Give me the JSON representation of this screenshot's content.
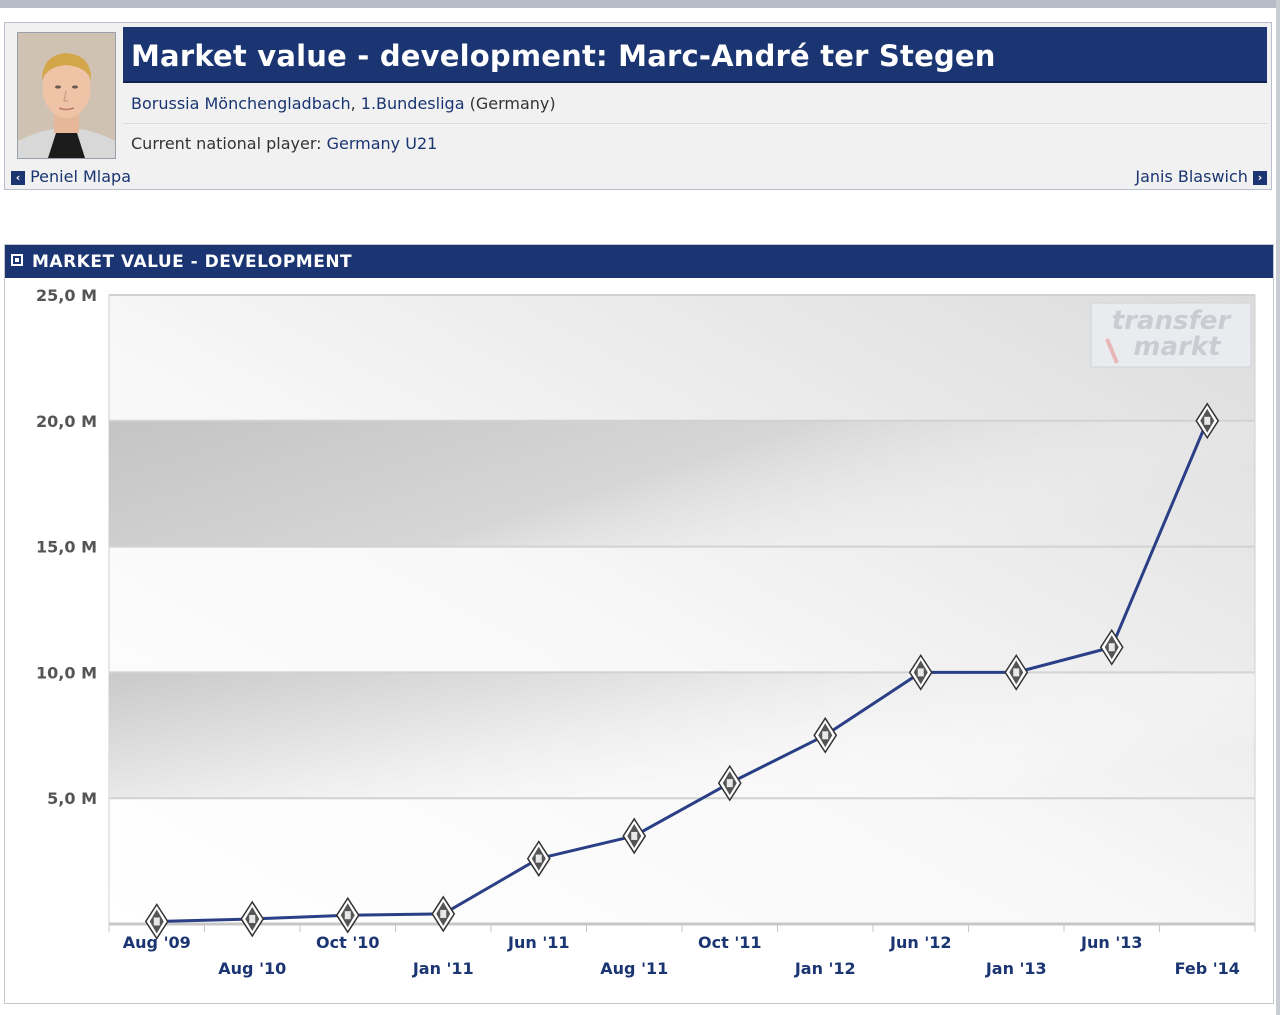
{
  "player": {
    "title": "Market value - development: Marc-André ter Stegen",
    "club": "Borussia Mönchengladbach",
    "league": "1.Bundesliga",
    "country": "(Germany)",
    "national_label": "Current national player:",
    "national_team": "Germany U21",
    "prev_player": "Peniel Mlapa",
    "next_player": "Janis Blaswich"
  },
  "section_title": "MARKET VALUE - DEVELOPMENT",
  "watermark": {
    "line1": "transfer",
    "line2": "markt"
  },
  "colors": {
    "header": "#1a3572",
    "line": "#2b3f86",
    "link": "#1a3572"
  },
  "chart_data": {
    "type": "line",
    "title": "",
    "xlabel": "",
    "ylabel": "",
    "ylim": [
      0,
      25
    ],
    "yticks": [
      5,
      10,
      15,
      20,
      25
    ],
    "ytick_labels": [
      "5,0 M",
      "10,0 M",
      "15,0 M",
      "20,0 M",
      "25,0 M"
    ],
    "grid": true,
    "legend": "none",
    "x": [
      "Aug '09",
      "Aug '10",
      "Oct '10",
      "Jan '11",
      "Jun '11",
      "Aug '11",
      "Oct '11",
      "Jan '12",
      "Jun '12",
      "Jan '13",
      "Jun '13",
      "Feb '14"
    ],
    "series": [
      {
        "values": [
          0.1,
          0.2,
          0.35,
          0.4,
          2.6,
          3.5,
          5.6,
          7.5,
          10,
          10,
          11,
          20
        ]
      }
    ]
  }
}
